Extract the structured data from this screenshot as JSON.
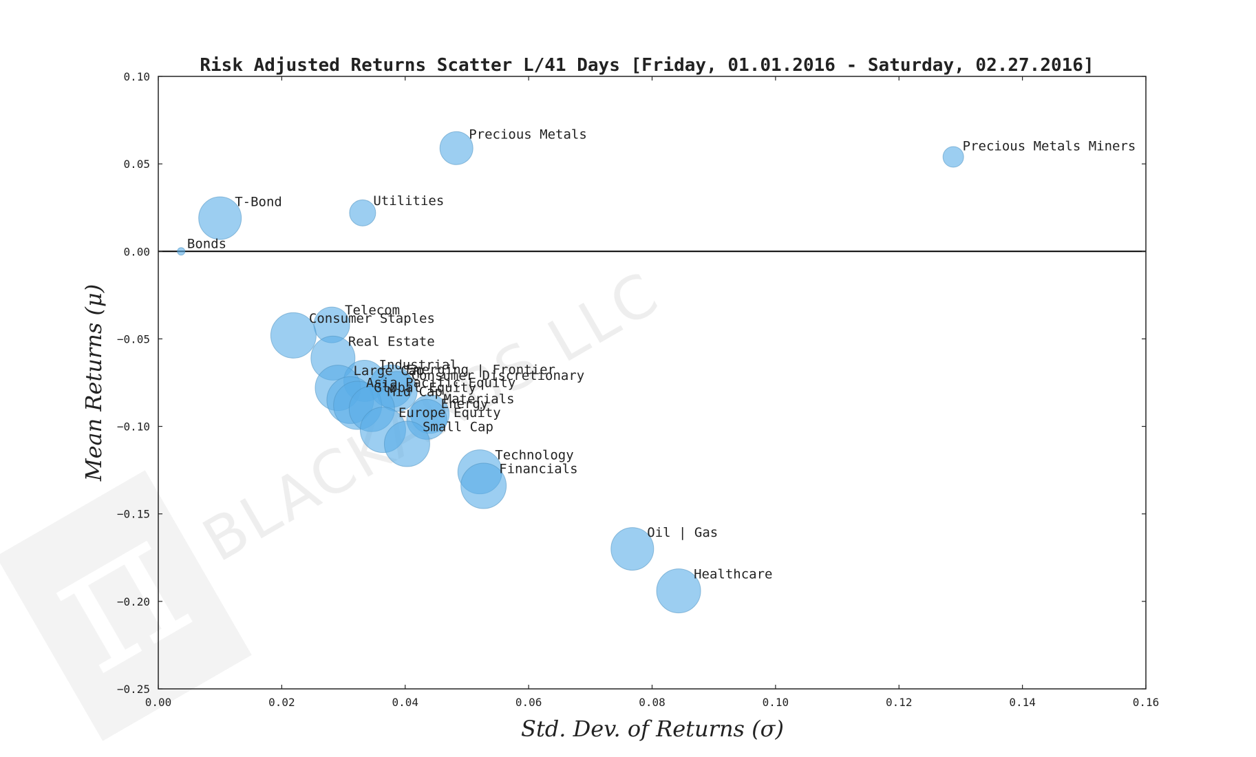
{
  "chart_data": {
    "type": "scatter",
    "title": "Risk Adjusted Returns Scatter L/41 Days [Friday, 01.01.2016 - Saturday, 02.27.2016]",
    "xlabel": "Std.  Dev.  of  Returns   (σ)",
    "ylabel": "Mean  Returns   (μ)",
    "xlim": [
      0.0,
      0.16
    ],
    "ylim": [
      -0.25,
      0.1
    ],
    "xticks": [
      "0.00",
      "0.02",
      "0.04",
      "0.06",
      "0.08",
      "0.10",
      "0.12",
      "0.14",
      "0.16"
    ],
    "yticks": [
      "0.10",
      "0.05",
      "0.00",
      "−0.05",
      "−0.10",
      "−0.15",
      "−0.20",
      "−0.25"
    ],
    "grid": false,
    "zero_line": true,
    "marker_color": "#5aaee8",
    "watermark": "BLACKARBS LLC",
    "points": [
      {
        "name": "Precious Metals",
        "x": 0.0483,
        "y": 0.059,
        "size": 48
      },
      {
        "name": "Precious Metals Miners",
        "x": 0.1288,
        "y": 0.054,
        "size": 30
      },
      {
        "name": "Utilities",
        "x": 0.0331,
        "y": 0.022,
        "size": 38
      },
      {
        "name": "T-Bond",
        "x": 0.01,
        "y": 0.019,
        "size": 62
      },
      {
        "name": "Bonds",
        "x": 0.0037,
        "y": 0.0,
        "size": 11
      },
      {
        "name": "Telecom",
        "x": 0.0281,
        "y": -0.042,
        "size": 52
      },
      {
        "name": "Consumer Staples",
        "x": 0.0219,
        "y": -0.048,
        "size": 66
      },
      {
        "name": "Real Estate",
        "x": 0.0283,
        "y": -0.061,
        "size": 64
      },
      {
        "name": "Industrial",
        "x": 0.0334,
        "y": -0.074,
        "size": 60
      },
      {
        "name": "Large Cap",
        "x": 0.0291,
        "y": -0.078,
        "size": 66
      },
      {
        "name": "Emerging | Frontier",
        "x": 0.0377,
        "y": -0.077,
        "size": 62
      },
      {
        "name": "Consumer Discretionary",
        "x": 0.0387,
        "y": -0.08,
        "size": 58
      },
      {
        "name": "Asia Pacific Equity",
        "x": 0.0311,
        "y": -0.085,
        "size": 68
      },
      {
        "name": "Global Equity",
        "x": 0.0323,
        "y": -0.088,
        "size": 70
      },
      {
        "name": "Mid Cap",
        "x": 0.0346,
        "y": -0.09,
        "size": 66
      },
      {
        "name": "Materials",
        "x": 0.044,
        "y": -0.093,
        "size": 56
      },
      {
        "name": "Energy",
        "x": 0.0435,
        "y": -0.096,
        "size": 58
      },
      {
        "name": "Europe Equity",
        "x": 0.0364,
        "y": -0.102,
        "size": 66
      },
      {
        "name": "Small Cap",
        "x": 0.0403,
        "y": -0.11,
        "size": 66
      },
      {
        "name": "Technology",
        "x": 0.0521,
        "y": -0.126,
        "size": 64
      },
      {
        "name": "Financials",
        "x": 0.0527,
        "y": -0.134,
        "size": 66
      },
      {
        "name": "Oil | Gas",
        "x": 0.0768,
        "y": -0.17,
        "size": 62
      },
      {
        "name": "Healthcare",
        "x": 0.0843,
        "y": -0.194,
        "size": 64
      }
    ]
  }
}
